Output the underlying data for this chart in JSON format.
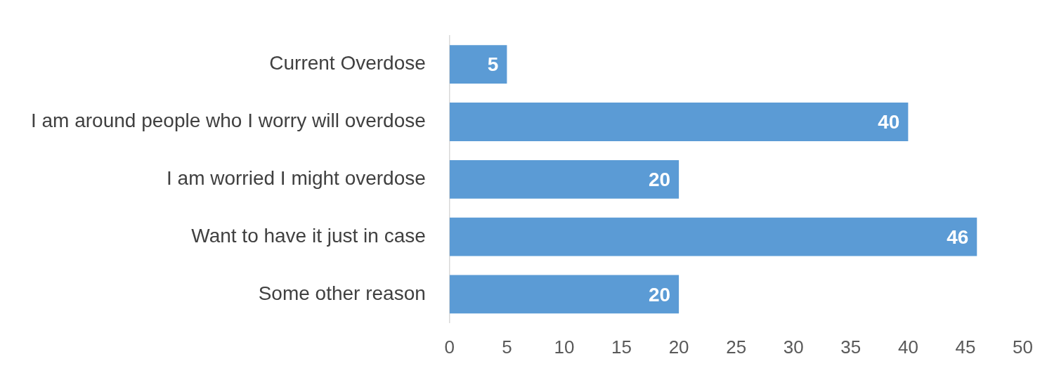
{
  "chart_data": {
    "type": "bar",
    "orientation": "horizontal",
    "categories": [
      "Current Overdose",
      "I am around people who I worry will overdose",
      "I am worried I might overdose",
      "Want to have it just in case",
      "Some other reason"
    ],
    "values": [
      5,
      40,
      20,
      46,
      20
    ],
    "color": "#5b9bd5",
    "xlim": [
      0,
      50
    ],
    "xticks": [
      0,
      5,
      10,
      15,
      20,
      25,
      30,
      35,
      40,
      45,
      50
    ],
    "grid": false,
    "legend": false,
    "data_labels": true
  }
}
